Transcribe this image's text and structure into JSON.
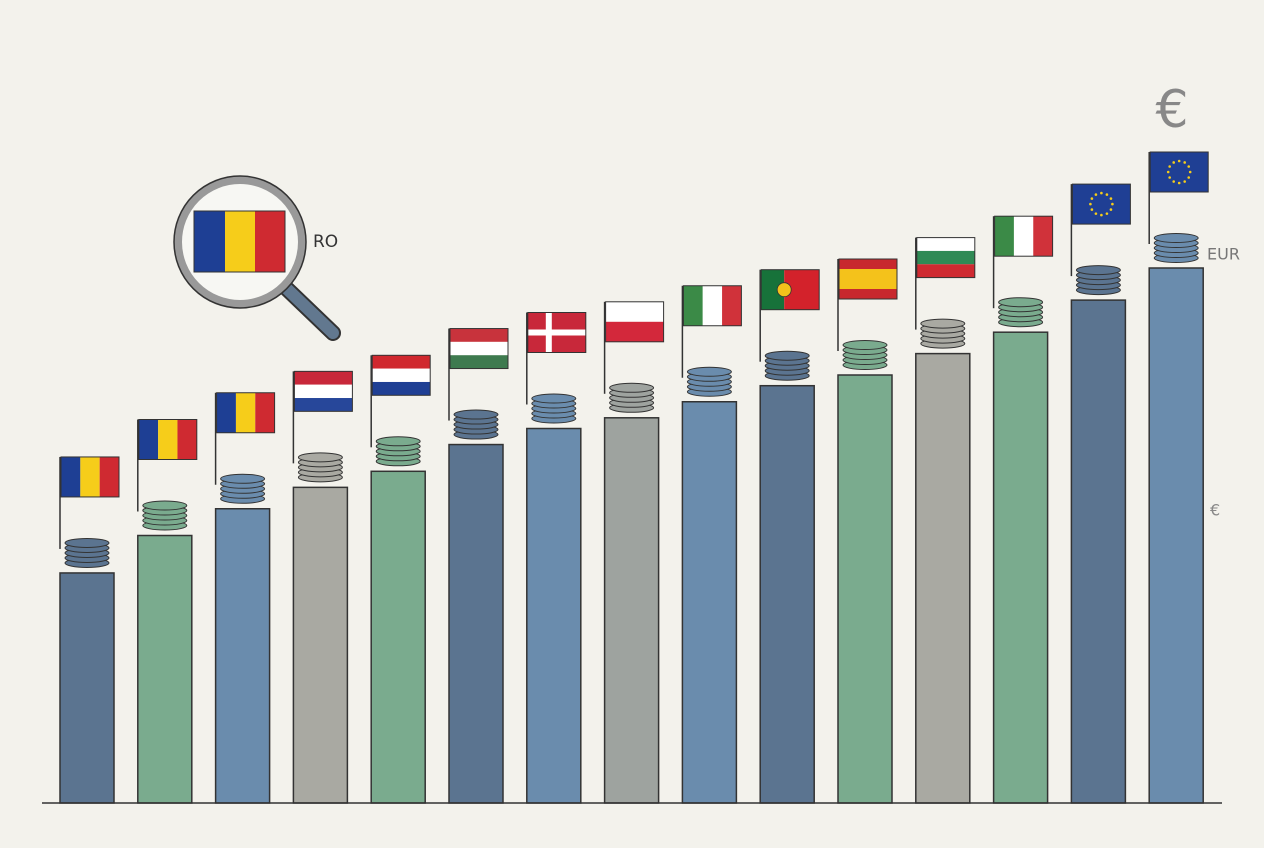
{
  "chart_data": {
    "type": "bar",
    "values": [
      43,
      50,
      55,
      59,
      62,
      67,
      70,
      72,
      75,
      78,
      80,
      84,
      88,
      94,
      100
    ],
    "colors": [
      "#5b7490",
      "#7aab8e",
      "#6a8cad",
      "#a9a9a2",
      "#7aab8e",
      "#5b7490",
      "#6a8cad",
      "#9ea39f",
      "#6a8cad",
      "#5b7490",
      "#7aab8e",
      "#a9a9a2",
      "#7aab8e",
      "#5b7490",
      "#6a8cad"
    ],
    "ylim": [
      0,
      100
    ],
    "annotations": [
      "€",
      "RO",
      "EUR",
      "€"
    ]
  }
}
